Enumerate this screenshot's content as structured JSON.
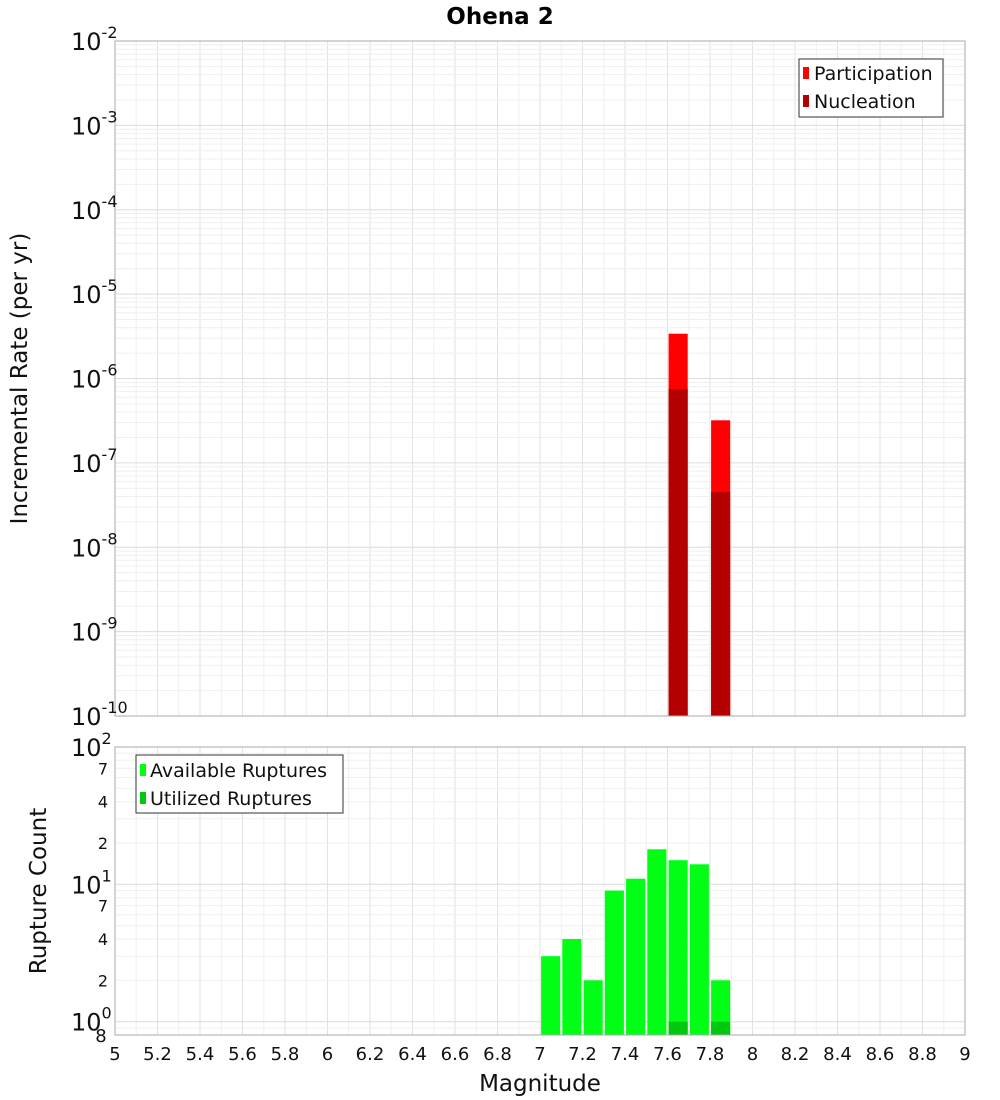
{
  "chart_data": [
    {
      "type": "bar",
      "title": "Ohena 2",
      "xlabel": "Magnitude",
      "ylabel": "Incremental Rate (per yr)",
      "yscale": "log",
      "xlim": [
        5,
        9
      ],
      "ylim": [
        1e-10,
        0.01
      ],
      "y_tick_exponents": [
        -10,
        -9,
        -8,
        -7,
        -6,
        -5,
        -4,
        -3,
        -2
      ],
      "grid": true,
      "legend_position": "top-right",
      "bar_width": 0.09,
      "series": [
        {
          "name": "Participation",
          "color": "#ff0000",
          "points": [
            {
              "x": 7.65,
              "y": 3.4e-06
            },
            {
              "x": 7.85,
              "y": 3.2e-07
            }
          ]
        },
        {
          "name": "Nucleation",
          "color": "#b40000",
          "points": [
            {
              "x": 7.65,
              "y": 7.5e-07
            },
            {
              "x": 7.85,
              "y": 4.5e-08
            }
          ]
        }
      ]
    },
    {
      "type": "bar",
      "xlabel": "Magnitude",
      "ylabel": "Rupture Count",
      "yscale": "log",
      "xlim": [
        5,
        9
      ],
      "ylim": [
        0.8,
        100
      ],
      "x_ticks": [
        "5",
        "5.2",
        "5.4",
        "5.6",
        "5.8",
        "6",
        "6.2",
        "6.4",
        "6.6",
        "6.8",
        "7",
        "7.2",
        "7.4",
        "7.6",
        "7.8",
        "8",
        "8.2",
        "8.4",
        "8.6",
        "8.8",
        "9"
      ],
      "y_minor_labels": [
        {
          "value": 2,
          "label": "2"
        },
        {
          "value": 4,
          "label": "4"
        },
        {
          "value": 7,
          "label": "7"
        },
        {
          "value": 20,
          "label": "2"
        },
        {
          "value": 40,
          "label": "4"
        },
        {
          "value": 70,
          "label": "7"
        }
      ],
      "y_bottom_label": "8",
      "grid": true,
      "legend_position": "top-left",
      "bar_width": 0.09,
      "series": [
        {
          "name": "Available Ruptures",
          "color": "#00ff14",
          "points": [
            {
              "x": 7.05,
              "y": 3
            },
            {
              "x": 7.15,
              "y": 4
            },
            {
              "x": 7.25,
              "y": 2
            },
            {
              "x": 7.35,
              "y": 9
            },
            {
              "x": 7.45,
              "y": 11
            },
            {
              "x": 7.55,
              "y": 18
            },
            {
              "x": 7.65,
              "y": 15
            },
            {
              "x": 7.75,
              "y": 14
            },
            {
              "x": 7.85,
              "y": 2
            }
          ]
        },
        {
          "name": "Utilized Ruptures",
          "color": "#00c80f",
          "points": [
            {
              "x": 7.65,
              "y": 1
            },
            {
              "x": 7.85,
              "y": 1
            }
          ]
        }
      ]
    }
  ]
}
